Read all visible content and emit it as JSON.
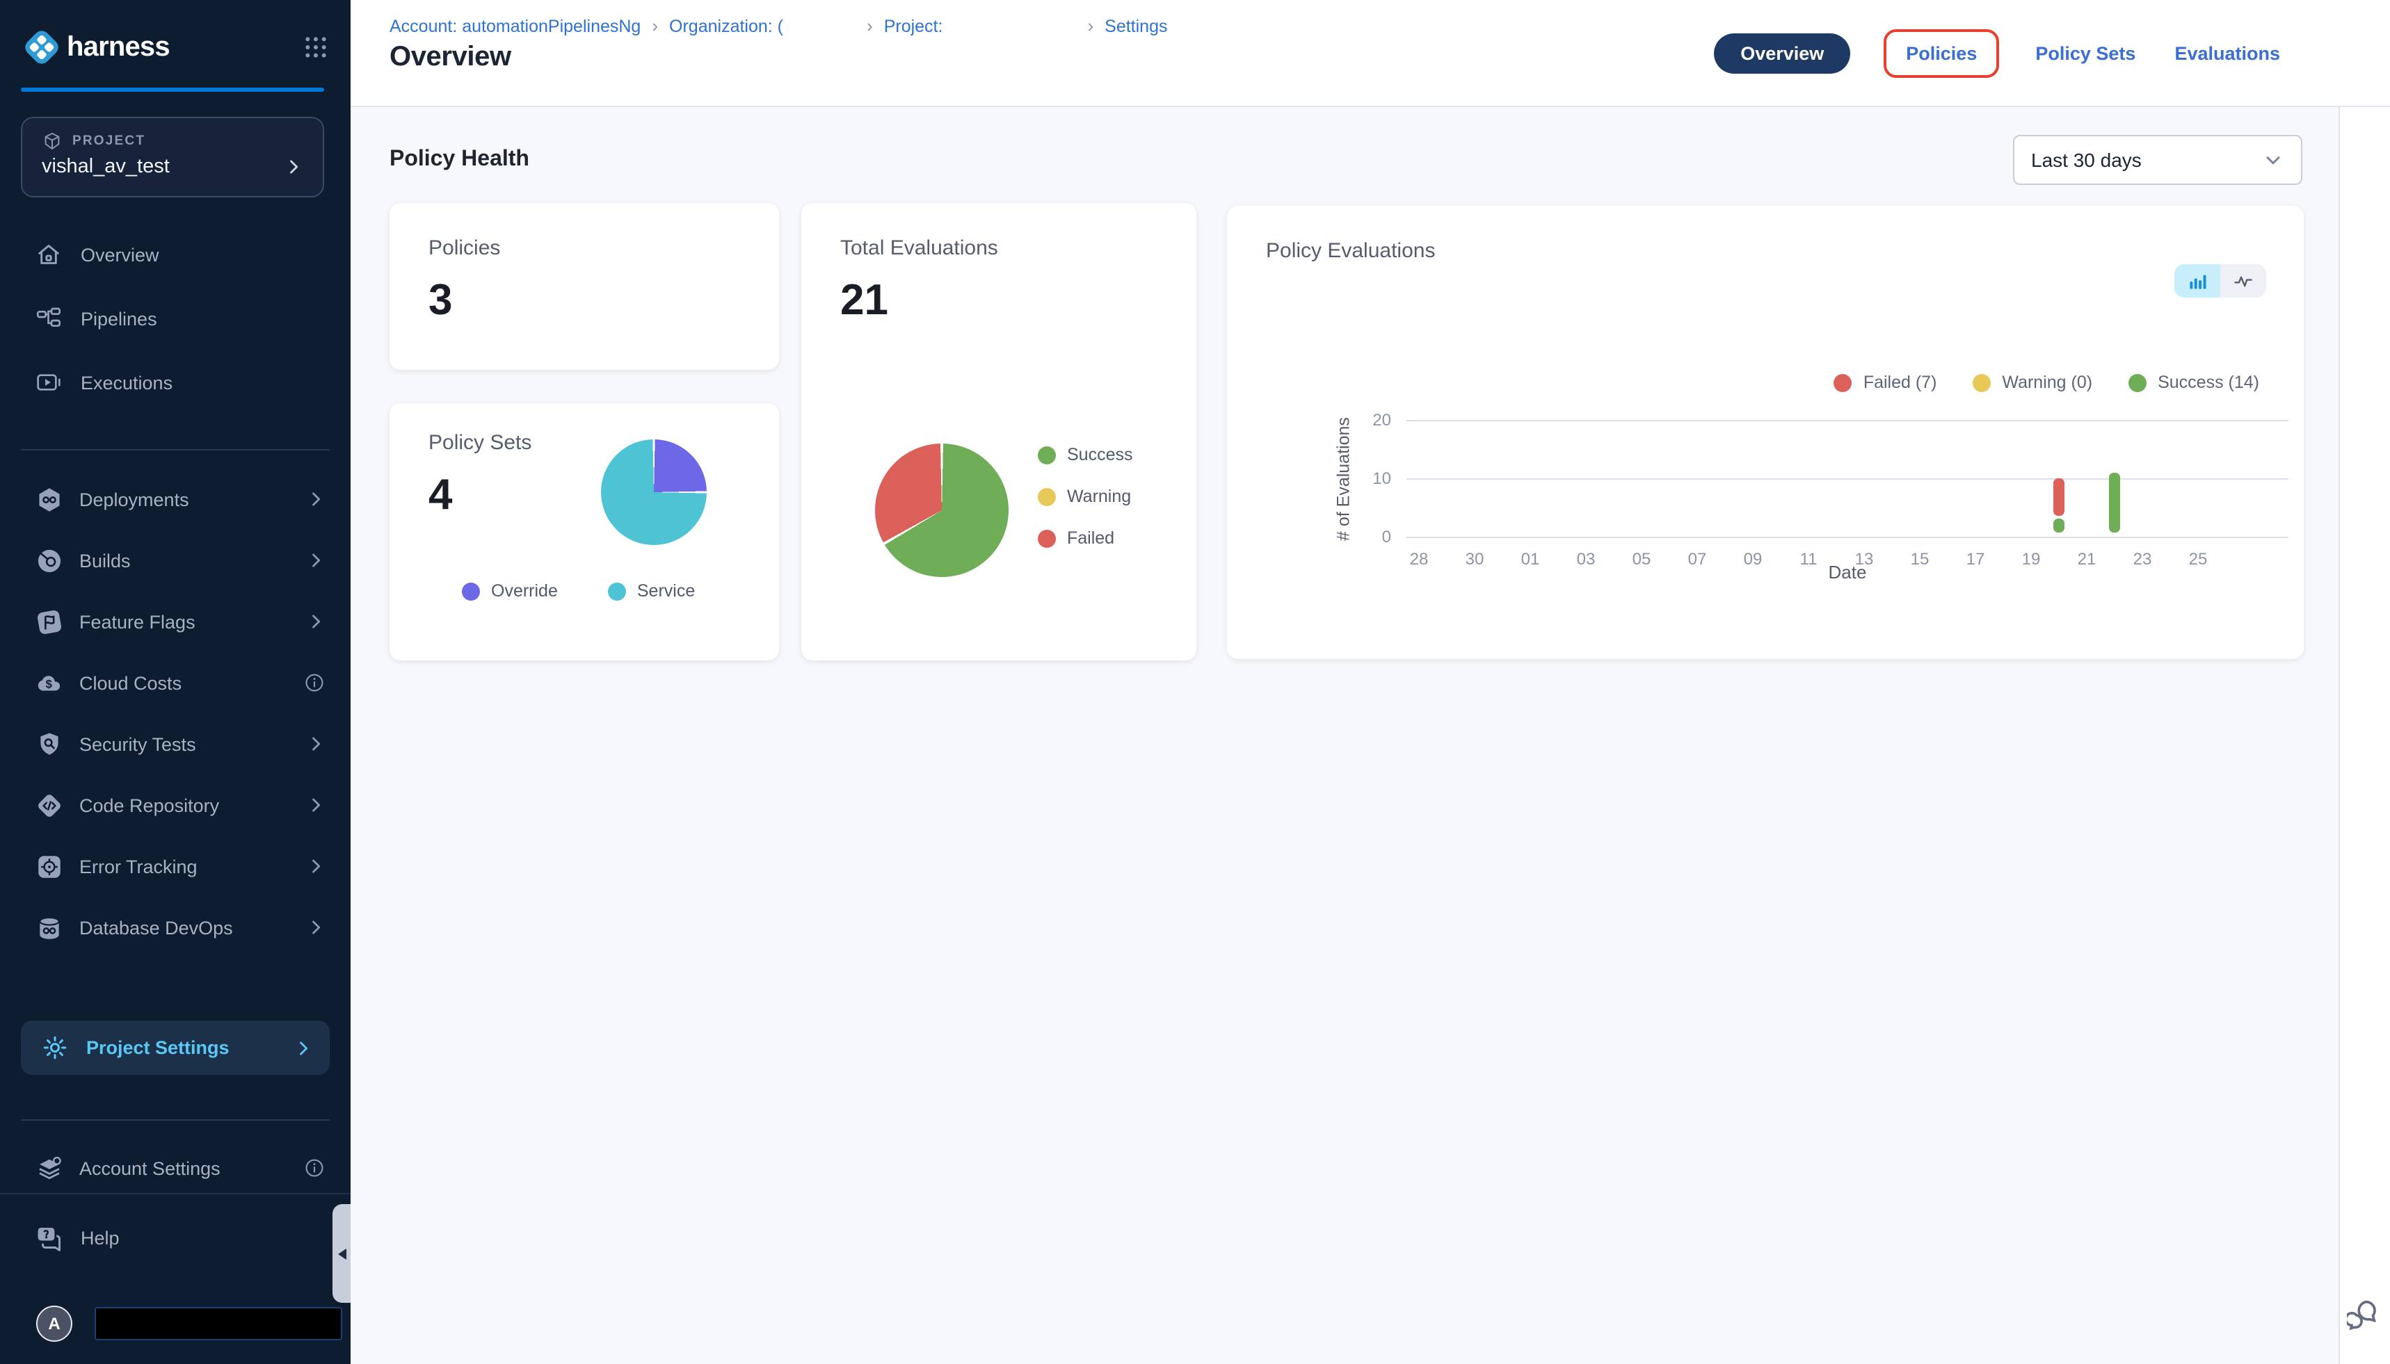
{
  "sidebar": {
    "brand": "harness",
    "project": {
      "label": "PROJECT",
      "name": "vishal_av_test"
    },
    "top_items": [
      {
        "label": "Overview",
        "icon": "home-icon"
      },
      {
        "label": "Pipelines",
        "icon": "pipelines-icon"
      },
      {
        "label": "Executions",
        "icon": "executions-icon"
      }
    ],
    "module_items": [
      {
        "label": "Deployments",
        "icon": "deployments-icon",
        "trailing": "chevron"
      },
      {
        "label": "Builds",
        "icon": "builds-icon",
        "trailing": "chevron"
      },
      {
        "label": "Feature Flags",
        "icon": "feature-flags-icon",
        "trailing": "chevron"
      },
      {
        "label": "Cloud Costs",
        "icon": "cloud-costs-icon",
        "trailing": "info"
      },
      {
        "label": "Security Tests",
        "icon": "security-tests-icon",
        "trailing": "chevron"
      },
      {
        "label": "Code Repository",
        "icon": "code-repository-icon",
        "trailing": "chevron"
      },
      {
        "label": "Error Tracking",
        "icon": "error-tracking-icon",
        "trailing": "chevron"
      },
      {
        "label": "Database DevOps",
        "icon": "database-devops-icon",
        "trailing": "chevron"
      }
    ],
    "project_settings": {
      "label": "Project Settings"
    },
    "account_settings": {
      "label": "Account Settings"
    },
    "help": {
      "label": "Help"
    },
    "avatar_letter": "A"
  },
  "header": {
    "breadcrumb": [
      "Account: automationPipelinesNg",
      "Organization: (",
      "Project:",
      "Settings"
    ],
    "title": "Overview",
    "tabs": [
      {
        "label": "Overview",
        "active": true,
        "highlighted": false
      },
      {
        "label": "Policies",
        "active": false,
        "highlighted": true
      },
      {
        "label": "Policy Sets",
        "active": false,
        "highlighted": false
      },
      {
        "label": "Evaluations",
        "active": false,
        "highlighted": false
      }
    ],
    "highlight_color": "#e8402e"
  },
  "main": {
    "section_title": "Policy Health",
    "date_filter": "Last 30 days",
    "cards": {
      "policies": {
        "title": "Policies",
        "value": "3"
      },
      "total_evaluations": {
        "title": "Total Evaluations",
        "value": "21"
      },
      "policy_sets": {
        "title": "Policy Sets",
        "value": "4"
      },
      "policy_evaluations": {
        "title": "Policy Evaluations"
      }
    }
  },
  "chart_data": [
    {
      "type": "pie",
      "title": "Total Evaluations breakdown",
      "slices": [
        {
          "label": "Success",
          "value": 14,
          "color": "#6fad56"
        },
        {
          "label": "Warning",
          "value": 0,
          "color": "#e7c95a"
        },
        {
          "label": "Failed",
          "value": 7,
          "color": "#db6059"
        }
      ],
      "legend_position": "right"
    },
    {
      "type": "pie",
      "title": "Policy Sets breakdown",
      "slices": [
        {
          "label": "Override",
          "value": 1,
          "color": "#6d68e8"
        },
        {
          "label": "Service",
          "value": 3,
          "color": "#4ec3d4"
        }
      ],
      "legend_position": "bottom"
    },
    {
      "type": "bar",
      "title": "Policy Evaluations",
      "stacked": true,
      "xlabel": "Date",
      "ylabel": "# of Evaluations",
      "ylim": [
        0,
        20
      ],
      "yticks": [
        0,
        10,
        20
      ],
      "grid": true,
      "categories": [
        "28",
        "30",
        "01",
        "03",
        "05",
        "07",
        "09",
        "11",
        "13",
        "15",
        "17",
        "19",
        "21",
        "23",
        "25"
      ],
      "colors": {
        "success": "#6fad56",
        "failed": "#db6059",
        "warning": "#e7c95a"
      },
      "legend": [
        {
          "label": "Failed (7)",
          "color": "#db6059"
        },
        {
          "label": "Warning (0)",
          "color": "#e7c95a"
        },
        {
          "label": "Success (14)",
          "color": "#6fad56"
        }
      ],
      "legend_position": "top-right",
      "bars": [
        {
          "date": "20",
          "x_index": 11.5,
          "success": 3,
          "failed": 7
        },
        {
          "date": "22",
          "x_index": 12.5,
          "success": 11,
          "failed": 0
        }
      ]
    }
  ]
}
